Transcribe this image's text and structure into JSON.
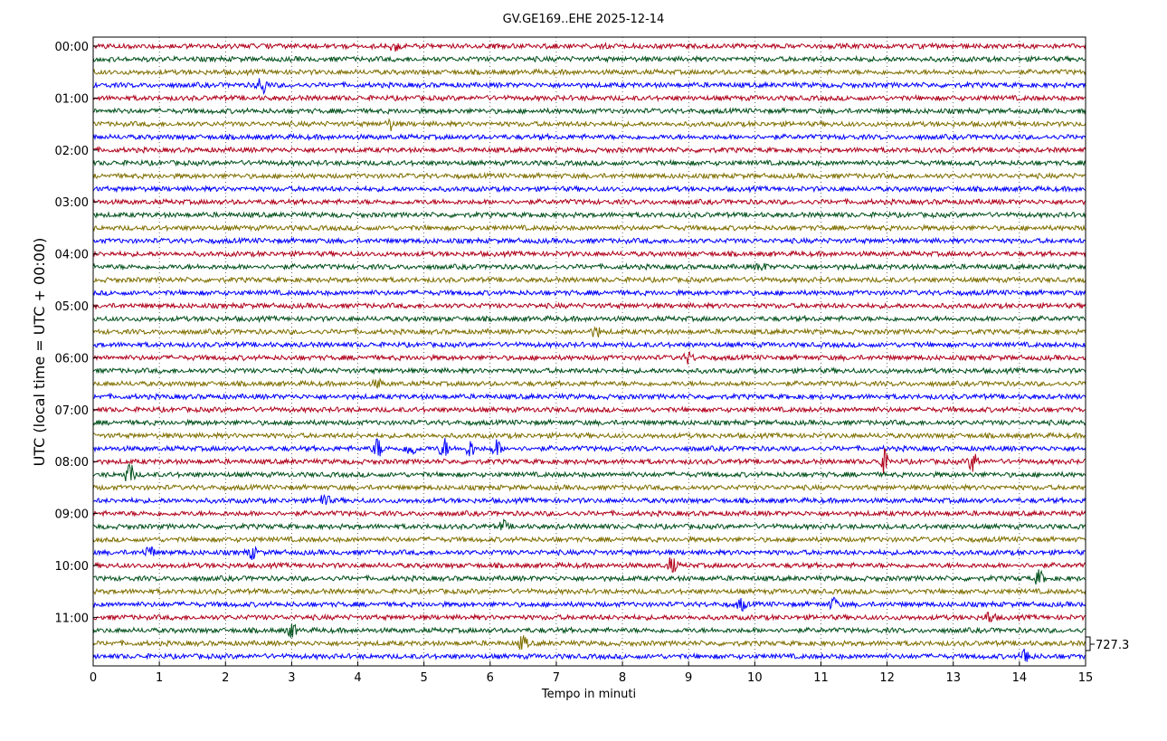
{
  "chart_data": {
    "type": "line",
    "title": "GV.GE169..EHE 2025-12-14",
    "xlabel": "Tempo in minuti",
    "ylabel": "UTC (local time = UTC + 00:00)",
    "xlim": [
      0,
      15
    ],
    "x_ticks": [
      "0",
      "1",
      "2",
      "3",
      "4",
      "5",
      "6",
      "7",
      "8",
      "9",
      "10",
      "11",
      "12",
      "13",
      "14",
      "15"
    ],
    "y_ticks": [
      "00:00",
      "01:00",
      "02:00",
      "03:00",
      "04:00",
      "05:00",
      "06:00",
      "07:00",
      "08:00",
      "09:00",
      "10:00",
      "11:00"
    ],
    "rows_per_hour": 4,
    "row_count": 48,
    "minutes_per_row": 15,
    "trace_colors": [
      "#b0001a",
      "#00501a",
      "#7f6f00",
      "#0000ff"
    ],
    "scale_label": "727.3",
    "events": [
      {
        "row": 0,
        "minute": 4.55,
        "amplitude": 0.6
      },
      {
        "row": 3,
        "minute": 2.55,
        "amplitude": 1.0
      },
      {
        "row": 6,
        "minute": 4.5,
        "amplitude": 0.5
      },
      {
        "row": 17,
        "minute": 10.1,
        "amplitude": 0.4
      },
      {
        "row": 22,
        "minute": 7.6,
        "amplitude": 0.5
      },
      {
        "row": 24,
        "minute": 9.0,
        "amplitude": 0.5
      },
      {
        "row": 26,
        "minute": 4.3,
        "amplitude": 0.4
      },
      {
        "row": 31,
        "minute": 4.3,
        "amplitude": 1.0
      },
      {
        "row": 31,
        "minute": 4.8,
        "amplitude": 0.9
      },
      {
        "row": 31,
        "minute": 5.3,
        "amplitude": 1.0
      },
      {
        "row": 31,
        "minute": 5.7,
        "amplitude": 0.8
      },
      {
        "row": 31,
        "minute": 6.1,
        "amplitude": 0.8
      },
      {
        "row": 32,
        "minute": 11.95,
        "amplitude": 1.1
      },
      {
        "row": 32,
        "minute": 13.3,
        "amplitude": 1.0
      },
      {
        "row": 33,
        "minute": 0.55,
        "amplitude": 1.1
      },
      {
        "row": 35,
        "minute": 3.5,
        "amplitude": 0.7
      },
      {
        "row": 37,
        "minute": 6.2,
        "amplitude": 0.5
      },
      {
        "row": 39,
        "minute": 0.85,
        "amplitude": 0.7
      },
      {
        "row": 39,
        "minute": 2.4,
        "amplitude": 0.6
      },
      {
        "row": 40,
        "minute": 8.75,
        "amplitude": 0.8
      },
      {
        "row": 41,
        "minute": 14.3,
        "amplitude": 0.7
      },
      {
        "row": 43,
        "minute": 9.8,
        "amplitude": 0.6
      },
      {
        "row": 43,
        "minute": 11.2,
        "amplitude": 0.6
      },
      {
        "row": 44,
        "minute": 13.55,
        "amplitude": 0.6
      },
      {
        "row": 45,
        "minute": 3.0,
        "amplitude": 0.7
      },
      {
        "row": 46,
        "minute": 6.5,
        "amplitude": 0.7
      },
      {
        "row": 47,
        "minute": 14.1,
        "amplitude": 0.9
      }
    ]
  }
}
